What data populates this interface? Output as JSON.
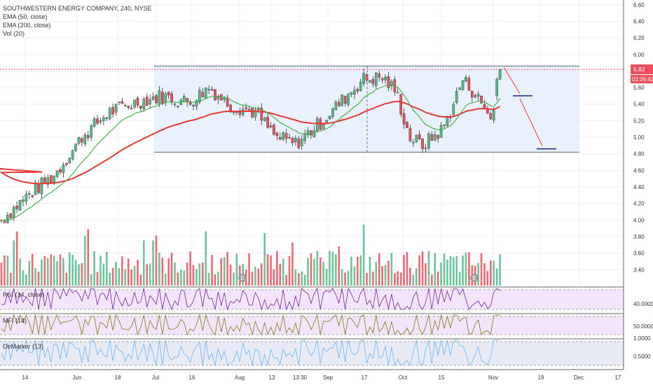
{
  "legend": {
    "title": "SOUTHWESTERN ENERGY COMPANY, 240, NYSE",
    "ema50": "EMA (50, close)",
    "ema200": "EMA (200, close)",
    "vol": "Vol (20)"
  },
  "indicators": {
    "rsi": "RSI (14, close)",
    "mfi": "MFI (14)",
    "demarker": "DeMarker (13)"
  },
  "price_tag": {
    "price": "5.82",
    "countdown": "02:06:42"
  },
  "earnings_marker": "E",
  "colors": {
    "up": "#53b987",
    "down": "#eb4d5c",
    "ema50": "#4caf50",
    "ema200": "#e53935",
    "channel_fill": "#e3eefc",
    "osc_fill": "#f3e5fb",
    "demarker_fill": "#e8eaf6",
    "arrow": "#e53935",
    "target": "#1a237e",
    "grid": "#eef0f4"
  },
  "chart_data": {
    "type": "candlestick",
    "price_axis": {
      "ticks": [
        "6.60",
        "6.40",
        "6.20",
        "6.00",
        "5.80",
        "5.60",
        "5.40",
        "5.20",
        "5.00",
        "4.80",
        "4.60",
        "4.40",
        "4.20",
        "4.00",
        "3.80",
        "3.60",
        "3.40"
      ],
      "range": [
        3.25,
        6.7
      ]
    },
    "rsi_axis": {
      "ticks": [
        "40.0000"
      ]
    },
    "mfi_axis": {
      "ticks": [
        "50.0000"
      ]
    },
    "demarker_axis": {
      "ticks": [
        "1.0000",
        "0.5000"
      ]
    },
    "time_axis": {
      "ticks": [
        "14",
        "Jun",
        "18",
        "Jul",
        "16",
        "Aug",
        "13",
        "13:30",
        "Sep",
        "17",
        "Oct",
        "15",
        "Nov",
        "19",
        "Dec",
        "17"
      ]
    },
    "channel": {
      "upper": 5.86,
      "lower": 4.82
    },
    "projection_targets": [
      5.5,
      4.86
    ],
    "last_price": 5.82
  }
}
